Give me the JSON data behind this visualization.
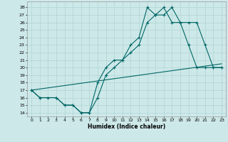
{
  "xlabel": "Humidex (Indice chaleur)",
  "background_color": "#cde8e8",
  "grid_color": "#b0d4d4",
  "line_color": "#006666",
  "xlim": [
    -0.5,
    23.5
  ],
  "ylim": [
    13.5,
    28.8
  ],
  "yticks": [
    14,
    15,
    16,
    17,
    18,
    19,
    20,
    21,
    22,
    23,
    24,
    25,
    26,
    27,
    28
  ],
  "xticks": [
    0,
    1,
    2,
    3,
    4,
    5,
    6,
    7,
    8,
    9,
    10,
    11,
    12,
    13,
    14,
    15,
    16,
    17,
    18,
    19,
    20,
    21,
    22,
    23
  ],
  "xtick_labels": [
    "0",
    "1",
    "2",
    "3",
    "4",
    "5",
    "6",
    "7",
    "8",
    "9",
    "10",
    "11",
    "12",
    "13",
    "14",
    "15",
    "16",
    "17",
    "18",
    "19",
    "20",
    "21",
    "22",
    "23"
  ],
  "line1_x": [
    0,
    1,
    2,
    3,
    4,
    5,
    6,
    7,
    8,
    9,
    10,
    11,
    12,
    13,
    14,
    15,
    16,
    17,
    18,
    19,
    20,
    21,
    22,
    23
  ],
  "line1_y": [
    17,
    16,
    16,
    16,
    15,
    15,
    14,
    14,
    18,
    20,
    21,
    21,
    23,
    24,
    28,
    27,
    28,
    26,
    26,
    23,
    20,
    20,
    20,
    20
  ],
  "line2_x": [
    0,
    1,
    3,
    4,
    5,
    6,
    7,
    8,
    9,
    10,
    11,
    12,
    13,
    14,
    15,
    16,
    17,
    18,
    19,
    20,
    21,
    22,
    23
  ],
  "line2_y": [
    17,
    16,
    16,
    15,
    15,
    14,
    14,
    16,
    19,
    20,
    21,
    22,
    23,
    26,
    27,
    27,
    28,
    26,
    26,
    26,
    23,
    20,
    20
  ],
  "line3_x": [
    0,
    23
  ],
  "line3_y": [
    17,
    20.5
  ]
}
